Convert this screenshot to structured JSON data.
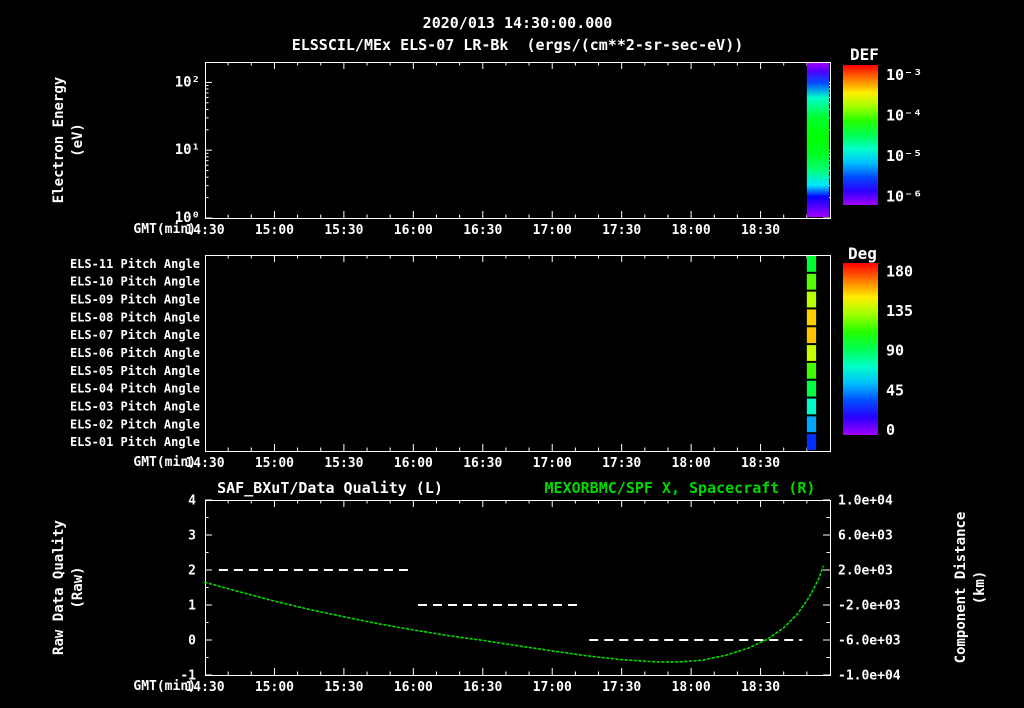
{
  "header": {
    "timestamp": "2020/013 14:30:00.000",
    "title": "ELSSCIL/MEx ELS-07 LR-Bk  (ergs/(cm**2-sr-sec-eV))"
  },
  "colors": {
    "background": "#000000",
    "text": "#ffffff",
    "green": "#00d900",
    "axis": "#ffffff"
  },
  "time_axis": {
    "label": "GMT(min)",
    "start": "14:30",
    "end": "19:00",
    "tick_labels": [
      "14:30",
      "15:00",
      "15:30",
      "16:00",
      "16:30",
      "17:00",
      "17:30",
      "18:00",
      "18:30"
    ],
    "minor_tick_minutes": 10
  },
  "chart_data": [
    {
      "type": "heatmap",
      "name": "electron-energy-spectrogram",
      "title": "ELSSCIL/MEx ELS-07 LR-Bk",
      "units": "ergs/(cm**2-sr-sec-eV)",
      "ylabel_line1": "Electron Energy",
      "ylabel_line2": "(eV)",
      "yscale": "log",
      "ylim_eV": [
        1,
        200
      ],
      "ytick_values": [
        1,
        10,
        100
      ],
      "ytick_labels": [
        "10⁰",
        "10¹",
        "10²"
      ],
      "colorbar": {
        "title": "DEF",
        "tick_labels": [
          "10⁻³",
          "10⁻⁴",
          "10⁻⁵",
          "10⁻⁶"
        ],
        "log10_range": [
          -3,
          -6
        ]
      },
      "data_strip": {
        "time_start": "18:50",
        "time_end": "19:00",
        "energy_eV": [
          1,
          2,
          3,
          5,
          8,
          15,
          30,
          60,
          100,
          150,
          200
        ],
        "log10_flux": [
          -6.1,
          -5.6,
          -5.0,
          -4.6,
          -4.4,
          -4.3,
          -4.4,
          -4.8,
          -5.4,
          -5.8,
          -6.2
        ]
      }
    },
    {
      "type": "heatmap",
      "name": "pitch-angle-panel",
      "rows": [
        {
          "label": "ELS-11 Pitch Angle",
          "pitch_deg": 95
        },
        {
          "label": "ELS-10 Pitch Angle",
          "pitch_deg": 115
        },
        {
          "label": "ELS-09 Pitch Angle",
          "pitch_deg": 130
        },
        {
          "label": "ELS-08 Pitch Angle",
          "pitch_deg": 148
        },
        {
          "label": "ELS-07 Pitch Angle",
          "pitch_deg": 150
        },
        {
          "label": "ELS-06 Pitch Angle",
          "pitch_deg": 132
        },
        {
          "label": "ELS-05 Pitch Angle",
          "pitch_deg": 112
        },
        {
          "label": "ELS-04 Pitch Angle",
          "pitch_deg": 92
        },
        {
          "label": "ELS-03 Pitch Angle",
          "pitch_deg": 72
        },
        {
          "label": "ELS-02 Pitch Angle",
          "pitch_deg": 50
        },
        {
          "label": "ELS-01 Pitch Angle",
          "pitch_deg": 32
        }
      ],
      "colorbar": {
        "title": "Deg",
        "tick_labels": [
          "180",
          "135",
          "90",
          "45",
          "0"
        ],
        "range_deg": [
          0,
          180
        ]
      },
      "data_strip": {
        "time_start": "18:50",
        "time_end": "18:54"
      }
    },
    {
      "type": "line",
      "name": "quality-and-spacecraft-distance",
      "title_left": "SAF_BXuT/Data Quality (L)",
      "title_right": "MEXORBMC/SPF X, Spacecraft (R)",
      "left_axis": {
        "label_line1": "Raw Data Quality",
        "label_line2": "(Raw)",
        "ticks": [
          4,
          3,
          2,
          1,
          0,
          -1
        ],
        "lim": [
          -1,
          4
        ]
      },
      "right_axis": {
        "label_line1": "Component Distance",
        "label_line2": "(km)",
        "tick_labels": [
          "1.0e+04",
          "6.0e+03",
          "2.0e+03",
          "-2.0e+03",
          "-6.0e+03",
          "-1.0e+04"
        ],
        "lim": [
          -10000,
          10000
        ]
      },
      "series": [
        {
          "name": "SAF_BXuT/Data Quality",
          "axis": "left",
          "color": "#ffffff",
          "style": "dashed",
          "segments": [
            {
              "t_start": "14:36",
              "t_end": "16:00",
              "value": 2
            },
            {
              "t_start": "16:02",
              "t_end": "17:13",
              "value": 1
            },
            {
              "t_start": "17:16",
              "t_end": "18:48",
              "value": 0
            }
          ]
        },
        {
          "name": "MEXORBMC/SPF X Spacecraft",
          "axis": "right",
          "color": "#00d900",
          "style": "dotted",
          "points": [
            {
              "t": "14:30",
              "km": 600
            },
            {
              "t": "14:45",
              "km": -500
            },
            {
              "t": "15:00",
              "km": -1550
            },
            {
              "t": "15:15",
              "km": -2500
            },
            {
              "t": "15:30",
              "km": -3350
            },
            {
              "t": "15:45",
              "km": -4150
            },
            {
              "t": "16:00",
              "km": -4850
            },
            {
              "t": "16:15",
              "km": -5500
            },
            {
              "t": "16:30",
              "km": -6050
            },
            {
              "t": "16:45",
              "km": -6650
            },
            {
              "t": "17:00",
              "km": -7250
            },
            {
              "t": "17:15",
              "km": -7800
            },
            {
              "t": "17:30",
              "km": -8250
            },
            {
              "t": "17:45",
              "km": -8500
            },
            {
              "t": "17:55",
              "km": -8500
            },
            {
              "t": "18:05",
              "km": -8300
            },
            {
              "t": "18:15",
              "km": -7750
            },
            {
              "t": "18:25",
              "km": -6900
            },
            {
              "t": "18:33",
              "km": -5900
            },
            {
              "t": "18:40",
              "km": -4600
            },
            {
              "t": "18:46",
              "km": -3000
            },
            {
              "t": "18:51",
              "km": -1100
            },
            {
              "t": "18:55",
              "km": 900
            },
            {
              "t": "18:57",
              "km": 2400
            }
          ]
        }
      ]
    }
  ]
}
